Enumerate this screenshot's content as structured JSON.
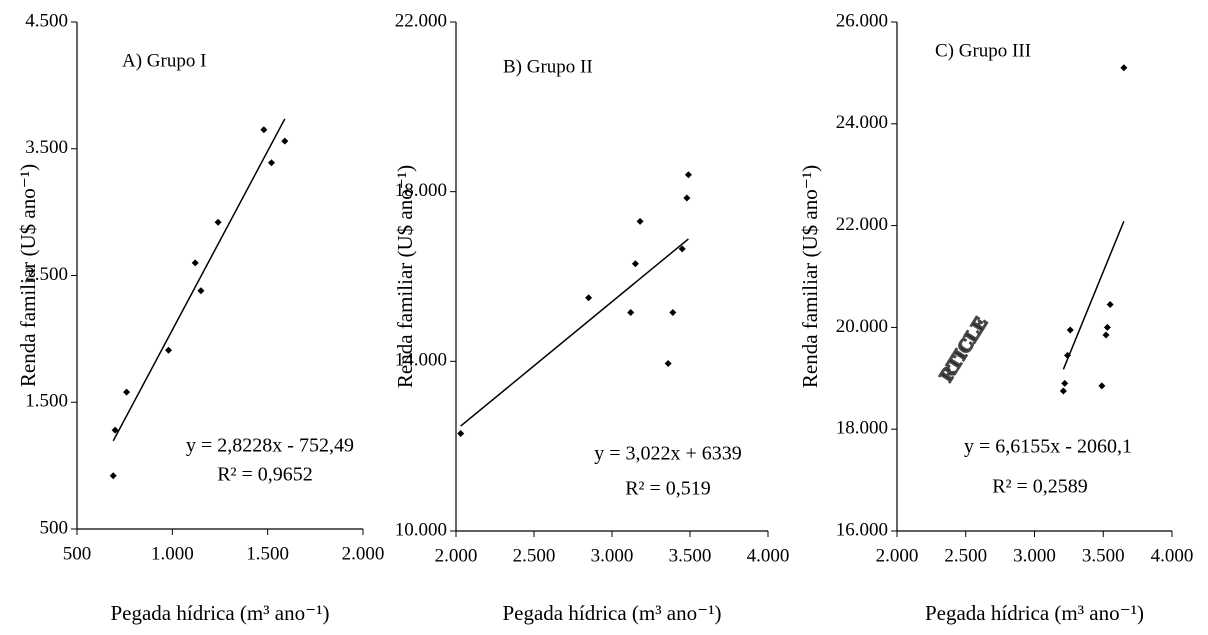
{
  "chart_data": [
    {
      "type": "scatter",
      "title": "A) Grupo I",
      "xlabel": "Pegada hídrica (m³ ano⁻¹)",
      "ylabel": "Renda familiar (U$ ano⁻¹)",
      "xlim": [
        500,
        2000
      ],
      "xticks": [
        500,
        {
          "value": 1000,
          "label": "1.000"
        },
        {
          "value": 1500,
          "label": "1.500"
        },
        {
          "value": 2000,
          "label": "2.000"
        }
      ],
      "ylim": [
        500,
        4500
      ],
      "yticks": [
        500,
        {
          "value": 1500,
          "label": "1.500"
        },
        {
          "value": 2500,
          "label": "2.500"
        },
        {
          "value": 3500,
          "label": "3.500"
        },
        {
          "value": 4500,
          "label": "4.500"
        }
      ],
      "series": [
        {
          "color": "#000000",
          "x": [
            690,
            700,
            760,
            980,
            1120,
            1150,
            1240,
            1480,
            1520,
            1590
          ],
          "values": [
            920,
            1280,
            1580,
            1910,
            2600,
            2380,
            2920,
            3650,
            3390,
            3560
          ]
        }
      ],
      "trendline": {
        "color": "#000000",
        "x": [
          690,
          1590
        ],
        "values": [
          1195,
          3736
        ]
      },
      "annotations": [
        "y = 2,8228x - 752,49",
        "R² = 0,9652"
      ]
    },
    {
      "type": "scatter",
      "title": "B) Grupo II",
      "xlabel": "Pegada hídrica (m³ ano⁻¹)",
      "ylabel": "Renda familiar (U$ ano⁻¹)",
      "xlim": [
        2000,
        4000
      ],
      "xticks": [
        {
          "value": 2000,
          "label": "2.000"
        },
        {
          "value": 2500,
          "label": "2.500"
        },
        {
          "value": 3000,
          "label": "3.000"
        },
        {
          "value": 3500,
          "label": "3.500"
        },
        {
          "value": 4000,
          "label": "4.000"
        }
      ],
      "ylim": [
        10000,
        22000
      ],
      "yticks": [
        {
          "value": 10000,
          "label": "10.000"
        },
        {
          "value": 14000,
          "label": "14.000"
        },
        {
          "value": 18000,
          "label": "18.000"
        },
        {
          "value": 22000,
          "label": "22.000"
        }
      ],
      "series": [
        {
          "color": "#000000",
          "x": [
            2030,
            2850,
            3120,
            3150,
            3180,
            3360,
            3390,
            3450,
            3480,
            3490
          ],
          "values": [
            12300,
            15500,
            15150,
            16300,
            17300,
            13950,
            15150,
            16650,
            17850,
            18400
          ]
        }
      ],
      "trendline": {
        "color": "#000000",
        "x": [
          2030,
          3490
        ],
        "values": [
          12474,
          16886
        ]
      },
      "annotations": [
        "y = 3,022x + 6339",
        "R² = 0,519"
      ]
    },
    {
      "type": "scatter",
      "title": "C) Grupo III",
      "xlabel": "Pegada hídrica (m³ ano⁻¹)",
      "ylabel": "Renda familiar (U$ ano⁻¹)",
      "xlim": [
        2000,
        4000
      ],
      "xticks": [
        {
          "value": 2000,
          "label": "2.000"
        },
        {
          "value": 2500,
          "label": "2.500"
        },
        {
          "value": 3000,
          "label": "3.000"
        },
        {
          "value": 3500,
          "label": "3.500"
        },
        {
          "value": 4000,
          "label": "4.000"
        }
      ],
      "ylim": [
        16000,
        26000
      ],
      "yticks": [
        {
          "value": 16000,
          "label": "16.000"
        },
        {
          "value": 18000,
          "label": "18.000"
        },
        {
          "value": 20000,
          "label": "20.000"
        },
        {
          "value": 22000,
          "label": "22.000"
        },
        {
          "value": 24000,
          "label": "24.000"
        },
        {
          "value": 26000,
          "label": "26.000"
        }
      ],
      "series": [
        {
          "color": "#000000",
          "x": [
            3210,
            3220,
            3240,
            3260,
            3490,
            3520,
            3530,
            3550,
            3650
          ],
          "values": [
            18750,
            18900,
            19450,
            19950,
            18850,
            19850,
            20000,
            20450,
            25100
          ]
        }
      ],
      "trendline": {
        "color": "#000000",
        "x": [
          3210,
          3650
        ],
        "values": [
          19176,
          22086
        ]
      },
      "annotations": [
        "y = 6,6155x - 2060,1",
        "R² = 0,2589"
      ]
    }
  ],
  "watermark": "RTICLE"
}
